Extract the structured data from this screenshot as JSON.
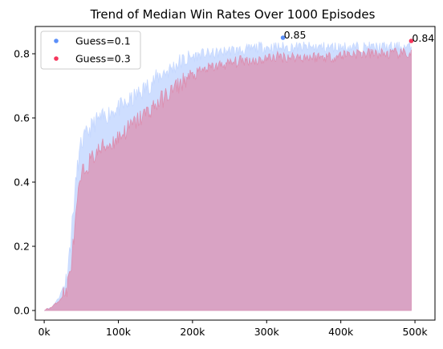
{
  "chart_data": {
    "type": "area",
    "title": "Trend of Median Win Rates Over 1000 Episodes",
    "xlabel": "",
    "ylabel": "",
    "xlim": [
      -12000,
      527000
    ],
    "ylim": [
      -0.03,
      0.885
    ],
    "x_ticks": [
      0,
      100000,
      200000,
      300000,
      400000,
      500000
    ],
    "x_tick_labels": [
      "0k",
      "100k",
      "200k",
      "300k",
      "400k",
      "500k"
    ],
    "y_ticks": [
      0.0,
      0.2,
      0.4,
      0.6,
      0.8
    ],
    "y_tick_labels": [
      "0.0",
      "0.2",
      "0.4",
      "0.6",
      "0.8"
    ],
    "grid": false,
    "legend_position": "top-left",
    "series": [
      {
        "name": "Guess=0.1",
        "color": "#5b8ff9",
        "fill": "#c6d8ff",
        "x": [
          0,
          10000,
          20000,
          30000,
          35000,
          40000,
          45000,
          50000,
          60000,
          70000,
          80000,
          90000,
          100000,
          110000,
          120000,
          130000,
          140000,
          150000,
          160000,
          170000,
          180000,
          190000,
          200000,
          215000,
          230000,
          250000,
          270000,
          290000,
          310000,
          330000,
          350000,
          370000,
          390000,
          410000,
          430000,
          450000,
          470000,
          495000
        ],
        "values": [
          0.0,
          0.01,
          0.04,
          0.1,
          0.2,
          0.33,
          0.45,
          0.52,
          0.56,
          0.59,
          0.6,
          0.62,
          0.63,
          0.64,
          0.66,
          0.68,
          0.7,
          0.72,
          0.74,
          0.75,
          0.77,
          0.78,
          0.79,
          0.8,
          0.8,
          0.81,
          0.81,
          0.82,
          0.82,
          0.82,
          0.82,
          0.82,
          0.82,
          0.82,
          0.82,
          0.82,
          0.82,
          0.82
        ],
        "peak": {
          "x": 322000,
          "value": 0.85,
          "label": "0.85"
        }
      },
      {
        "name": "Guess=0.3",
        "color": "#f5365c",
        "fill": "#dc8fb0",
        "x": [
          0,
          10000,
          20000,
          30000,
          35000,
          40000,
          45000,
          50000,
          60000,
          70000,
          80000,
          90000,
          100000,
          110000,
          120000,
          130000,
          140000,
          150000,
          160000,
          170000,
          180000,
          190000,
          200000,
          215000,
          230000,
          250000,
          270000,
          290000,
          310000,
          330000,
          350000,
          370000,
          390000,
          410000,
          430000,
          450000,
          470000,
          495000
        ],
        "values": [
          0.0,
          0.01,
          0.03,
          0.06,
          0.12,
          0.22,
          0.34,
          0.42,
          0.46,
          0.49,
          0.51,
          0.52,
          0.54,
          0.56,
          0.58,
          0.6,
          0.62,
          0.64,
          0.66,
          0.68,
          0.7,
          0.72,
          0.73,
          0.75,
          0.76,
          0.77,
          0.78,
          0.78,
          0.79,
          0.79,
          0.79,
          0.79,
          0.79,
          0.8,
          0.8,
          0.8,
          0.8,
          0.8
        ],
        "peak": {
          "x": 495000,
          "value": 0.84,
          "label": "0.84"
        }
      }
    ]
  }
}
